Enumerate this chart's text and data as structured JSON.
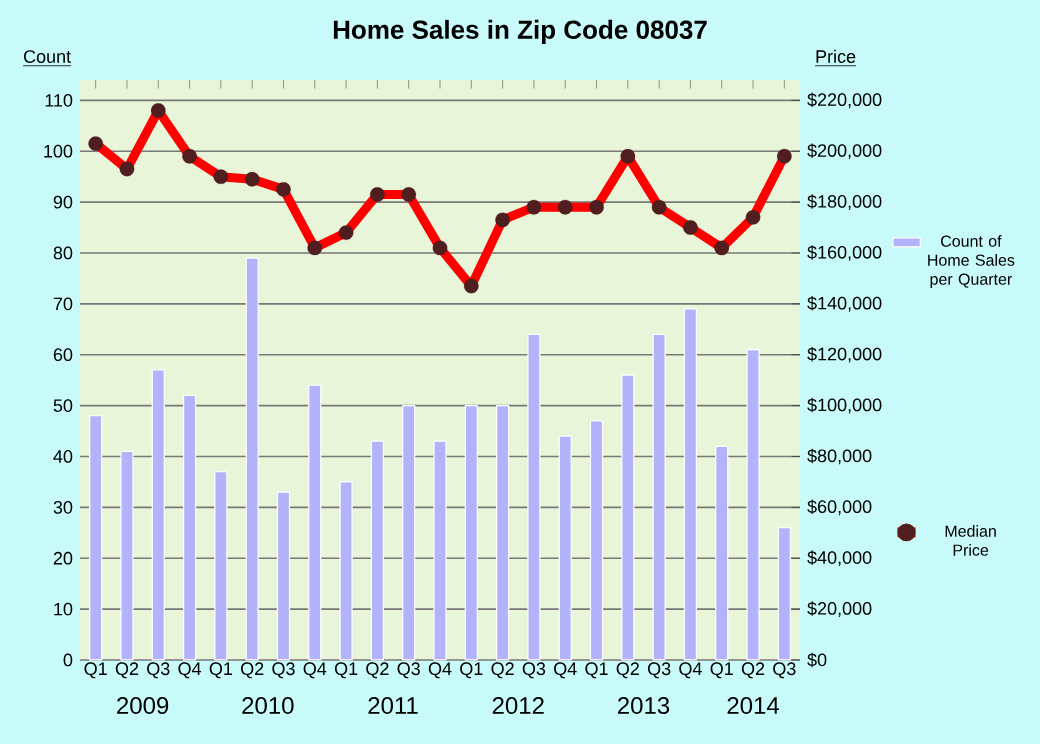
{
  "chart_data": {
    "type": "bar",
    "title": "Home Sales in Zip Code 08037",
    "ylabel": "Count",
    "y2label": "Price",
    "categories": [
      "Q1",
      "Q2",
      "Q3",
      "Q4",
      "Q1",
      "Q2",
      "Q3",
      "Q4",
      "Q1",
      "Q2",
      "Q3",
      "Q4",
      "Q1",
      "Q2",
      "Q3",
      "Q4",
      "Q1",
      "Q2",
      "Q3",
      "Q4",
      "Q1",
      "Q2",
      "Q3"
    ],
    "annotations": [
      "2009",
      "2010",
      "2011",
      "2012",
      "2013",
      "2014"
    ],
    "series": [
      {
        "name": "Count of Home Sales per Quarter",
        "color": "#b3b3fb",
        "values": [
          48,
          41,
          57,
          52,
          37,
          79,
          33,
          54,
          35,
          43,
          50,
          43,
          50,
          50,
          64,
          44,
          47,
          56,
          64,
          69,
          42,
          61,
          26
        ]
      },
      {
        "name": "Median Price",
        "type": "line",
        "axis": "y2",
        "color": "#ff0000",
        "values": [
          203000,
          193000,
          216000,
          198000,
          190000,
          189000,
          185000,
          162000,
          168000,
          183000,
          183000,
          162000,
          147000,
          173000,
          178000,
          178000,
          178000,
          198000,
          178000,
          170000,
          162000,
          174000,
          198000
        ]
      }
    ],
    "ylim": [
      0,
      114
    ],
    "yticks": [
      0,
      10,
      20,
      30,
      40,
      50,
      60,
      70,
      80,
      90,
      100,
      110
    ],
    "y2lim": [
      0,
      228000
    ],
    "y2ticks": [
      {
        "value": 0,
        "label": "$0"
      },
      {
        "value": 20000,
        "label": "$20,000"
      },
      {
        "value": 40000,
        "label": "$40,000"
      },
      {
        "value": 60000,
        "label": "$60,000"
      },
      {
        "value": 80000,
        "label": "$80,000"
      },
      {
        "value": 100000,
        "label": "$100,000"
      },
      {
        "value": 120000,
        "label": "$120,000"
      },
      {
        "value": 140000,
        "label": "$140,000"
      },
      {
        "value": 160000,
        "label": "$160,000"
      },
      {
        "value": 180000,
        "label": "$180,000"
      },
      {
        "value": 200000,
        "label": "$200,000"
      },
      {
        "value": 220000,
        "label": "$220,000"
      }
    ],
    "grid": "y",
    "legend": "right",
    "marker": "circle"
  }
}
